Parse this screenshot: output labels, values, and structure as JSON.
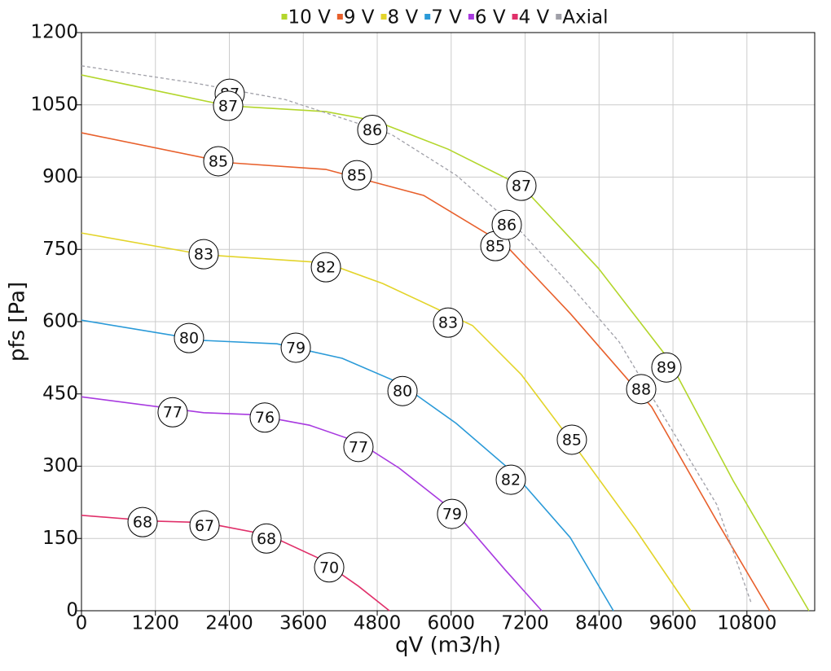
{
  "chart_data": {
    "type": "line",
    "xlabel": "qV (m3/h)",
    "ylabel": "pfs [Pa]",
    "xlim": [
      0,
      11900
    ],
    "ylim": [
      0,
      1200
    ],
    "xticks": [
      0,
      1200,
      2400,
      3600,
      4800,
      6000,
      7200,
      8400,
      9600,
      10800
    ],
    "yticks": [
      0,
      150,
      300,
      450,
      600,
      750,
      900,
      1050,
      1200
    ],
    "grid": true,
    "legend": "top",
    "series": [
      {
        "name": "10 V",
        "color": "#b3d62c",
        "x": [
          0,
          2380,
          3966,
          4760,
          5950,
          7139,
          8395,
          9518,
          10576,
          11806
        ],
        "values": [
          1112,
          1048,
          1036,
          1017,
          958,
          882,
          710,
          524,
          270,
          0
        ],
        "markers": [
          {
            "x": 2406,
            "y": 1073,
            "value": 87
          },
          {
            "x": 4720,
            "y": 998,
            "value": 86
          },
          {
            "x": 7140,
            "y": 882,
            "value": 87
          },
          {
            "x": 9493,
            "y": 505,
            "value": 89
          }
        ]
      },
      {
        "name": "9 V",
        "color": "#e8602c",
        "x": [
          0,
          2380,
          3966,
          5553,
          6875,
          7932,
          9254,
          10312,
          11171
        ],
        "values": [
          992,
          930,
          916,
          862,
          760,
          617,
          423,
          186,
          0
        ],
        "markers": [
          {
            "x": 2221,
            "y": 933,
            "value": 85
          },
          {
            "x": 4469,
            "y": 904,
            "value": 85
          },
          {
            "x": 6717,
            "y": 757,
            "value": 85
          },
          {
            "x": 9084,
            "y": 460,
            "value": 88
          }
        ]
      },
      {
        "name": "8 V",
        "color": "#e3d42a",
        "x": [
          0,
          1983,
          3966,
          4892,
          6346,
          7139,
          7932,
          8990,
          9889
        ],
        "values": [
          784,
          739,
          722,
          679,
          592,
          490,
          355,
          169,
          0
        ],
        "markers": [
          {
            "x": 1983,
            "y": 740,
            "value": 83
          },
          {
            "x": 3967,
            "y": 713,
            "value": 82
          },
          {
            "x": 5950,
            "y": 598,
            "value": 83
          },
          {
            "x": 7959,
            "y": 355,
            "value": 85
          }
        ]
      },
      {
        "name": "7 V",
        "color": "#2a9ad8",
        "x": [
          0,
          1983,
          3173,
          4231,
          5157,
          6081,
          7007,
          7932,
          8633
        ],
        "values": [
          603,
          561,
          554,
          524,
          473,
          389,
          287,
          152,
          0
        ],
        "markers": [
          {
            "x": 1745,
            "y": 566,
            "value": 80
          },
          {
            "x": 3478,
            "y": 546,
            "value": 79
          },
          {
            "x": 5210,
            "y": 456,
            "value": 80
          },
          {
            "x": 6968,
            "y": 272,
            "value": 82
          }
        ]
      },
      {
        "name": "6 V",
        "color": "#a83ae0",
        "x": [
          0,
          1983,
          2776,
          3702,
          4495,
          5157,
          6081,
          6875,
          7470
        ],
        "values": [
          444,
          411,
          407,
          385,
          350,
          296,
          203,
          85,
          0
        ],
        "markers": [
          {
            "x": 1480,
            "y": 412,
            "value": 77
          },
          {
            "x": 2975,
            "y": 401,
            "value": 76
          },
          {
            "x": 4495,
            "y": 340,
            "value": 77
          },
          {
            "x": 6015,
            "y": 201,
            "value": 79
          }
        ]
      },
      {
        "name": "4 V",
        "color": "#e0306a",
        "x": [
          0,
          1190,
          1983,
          3041,
          3834,
          4495,
          4998
        ],
        "values": [
          198,
          186,
          183,
          157,
          110,
          51,
          0
        ],
        "markers": [
          {
            "x": 992,
            "y": 184,
            "value": 68
          },
          {
            "x": 1997,
            "y": 177,
            "value": 67
          },
          {
            "x": 3002,
            "y": 150,
            "value": 68
          },
          {
            "x": 4020,
            "y": 90,
            "value": 70
          }
        ]
      },
      {
        "name": "Axial",
        "color": "#a0a0a8",
        "dashed": true,
        "x": [
          0,
          1851,
          3306,
          5025,
          6081,
          7139,
          7932,
          8726,
          9518,
          10312,
          10867
        ],
        "values": [
          1131,
          1095,
          1061,
          989,
          904,
          786,
          676,
          558,
          389,
          220,
          17
        ],
        "markers": [
          {
            "x": 2380,
            "y": 1048,
            "value": 87
          },
          {
            "x": 6902,
            "y": 801,
            "value": 86
          }
        ]
      }
    ]
  }
}
